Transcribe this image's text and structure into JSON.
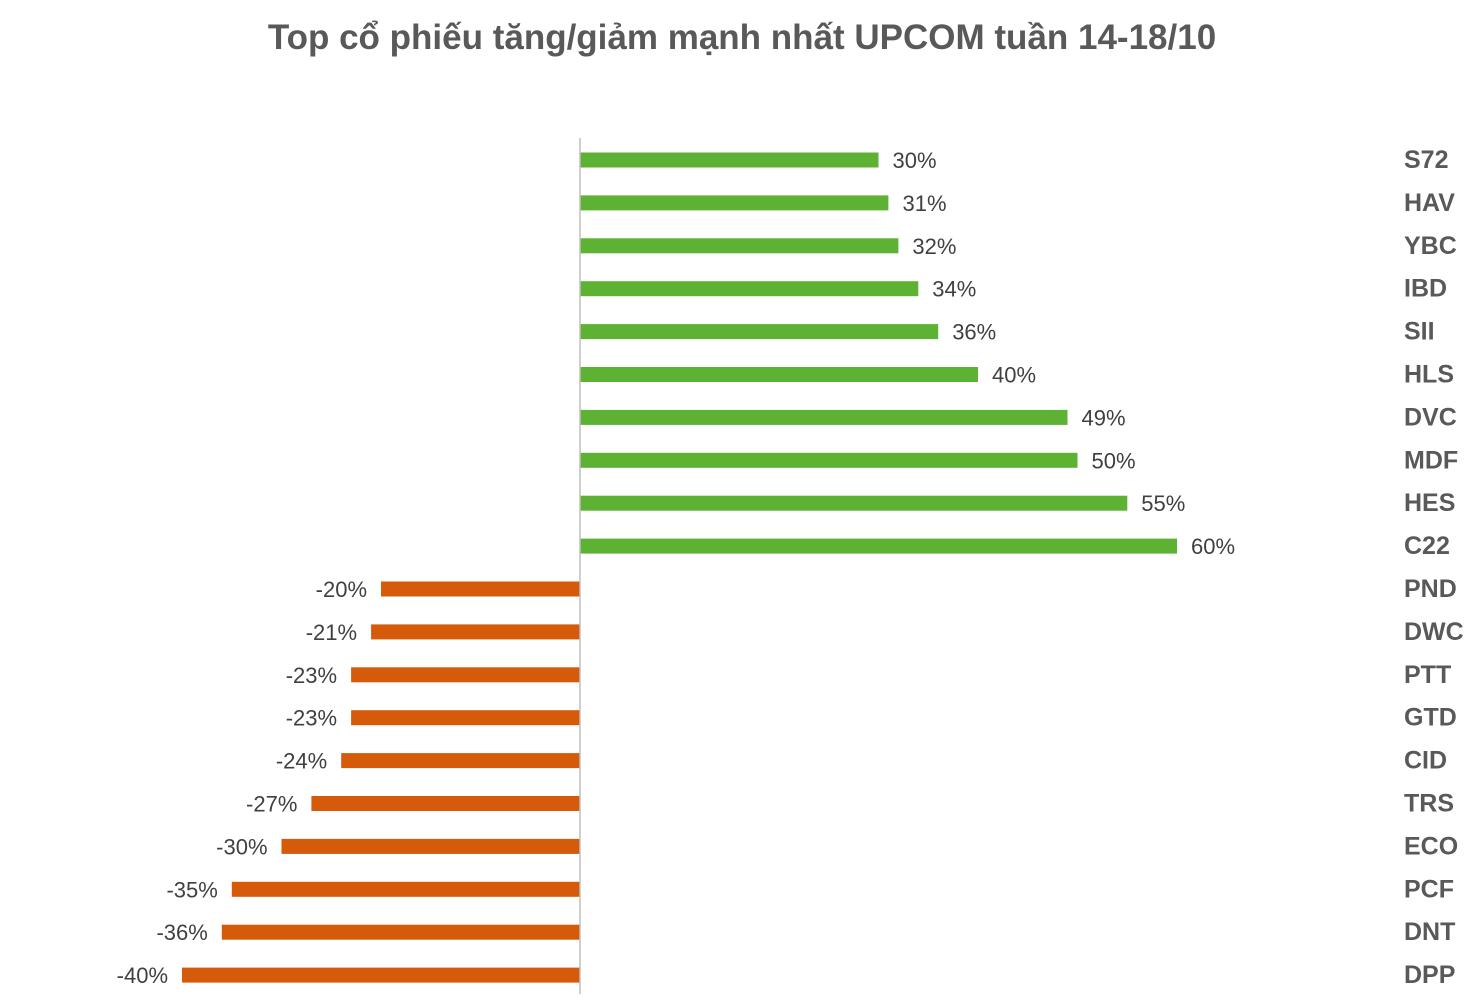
{
  "chart_data": {
    "type": "bar",
    "orientation": "horizontal",
    "title": "Top cổ phiếu tăng/giảm mạnh nhất UPCOM tuần 14-18/10",
    "xlabel": "",
    "ylabel": "",
    "grid": false,
    "legend": "none",
    "xlim": [
      -40,
      60
    ],
    "categories": [
      "S72",
      "HAV",
      "YBC",
      "IBD",
      "SII",
      "HLS",
      "DVC",
      "MDF",
      "HES",
      "C22",
      "PND",
      "DWC",
      "PTT",
      "GTD",
      "CID",
      "TRS",
      "ECO",
      "PCF",
      "DNT",
      "DPP"
    ],
    "values": [
      30,
      31,
      32,
      34,
      36,
      40,
      49,
      50,
      55,
      60,
      -20,
      -21,
      -23,
      -23,
      -24,
      -27,
      -30,
      -35,
      -36,
      -40
    ],
    "data_labels": [
      "30%",
      "31%",
      "32%",
      "34%",
      "36%",
      "40%",
      "49%",
      "50%",
      "55%",
      "60%",
      "-20%",
      "-21%",
      "-23%",
      "-23%",
      "-24%",
      "-27%",
      "-30%",
      "-35%",
      "-36%",
      "-40%"
    ],
    "colors": {
      "positive": "#5db233",
      "negative": "#d55a0a",
      "axis": "#bfbfbf"
    }
  }
}
